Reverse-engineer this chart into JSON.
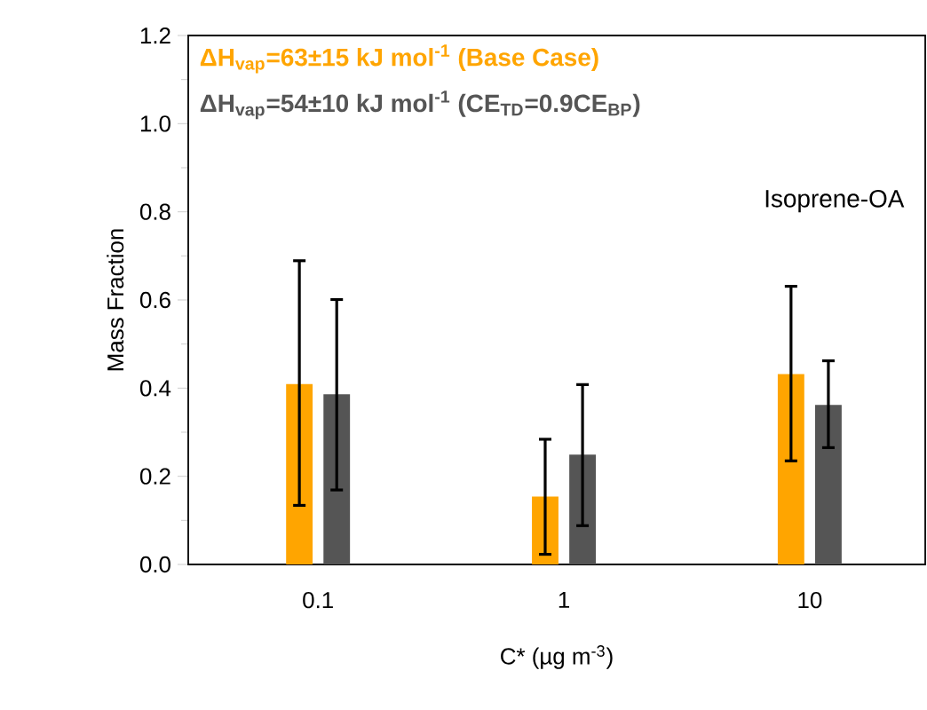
{
  "chart_data": {
    "type": "bar",
    "xlabel": "C* (µg m$^{-3}$)",
    "ylabel": "Mass Fraction",
    "categories": [
      "0.1",
      "1",
      "10"
    ],
    "series": [
      {
        "name": "ΔH$_{vap}$=63±15 kJ mol$^{-1}$ (Base Case)",
        "color": "#ffa500",
        "values": [
          0.409,
          0.154,
          0.432
        ],
        "errors": [
          [
            0.134,
            0.689
          ],
          [
            0.023,
            0.284
          ],
          [
            0.235,
            0.631
          ]
        ]
      },
      {
        "name": "ΔH$_{vap}$=54±10 kJ mol$^{-1}$  (CE$_{TD}$=0.9CE$_{BP}$)",
        "color": "#555555",
        "values": [
          0.386,
          0.249,
          0.362
        ],
        "errors": [
          [
            0.169,
            0.601
          ],
          [
            0.088,
            0.408
          ],
          [
            0.265,
            0.462
          ]
        ]
      }
    ],
    "ylim": [
      0,
      1.2
    ],
    "yticks": [
      {
        "value": 0,
        "label": "0.0"
      },
      0.2,
      0.4,
      0.6,
      0.8,
      {
        "value": 1,
        "label": "1.0"
      },
      1.2
    ],
    "annotations": [
      "Isoprene-OA"
    ],
    "legend": "top left",
    "grid": false
  }
}
